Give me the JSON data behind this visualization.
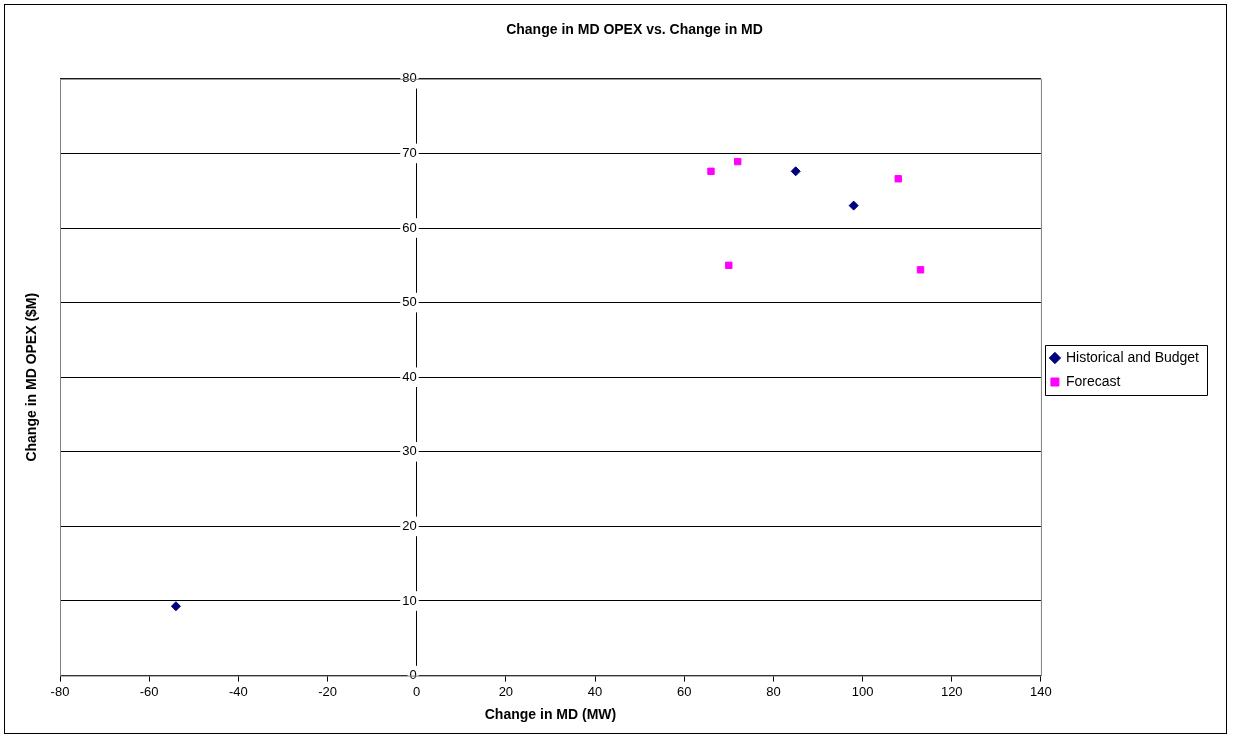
{
  "chart_data": {
    "type": "scatter",
    "title": "Change in MD OPEX vs. Change in MD",
    "xlabel": "Change in MD (MW)",
    "ylabel": "Change in MD OPEX ($M)",
    "series": [
      {
        "name": "Historical and Budget",
        "color": "#000080",
        "marker": "diamond",
        "x": [
          -54,
          85,
          98
        ],
        "values": [
          9.3,
          67.6,
          63
        ]
      },
      {
        "name": "Forecast",
        "color": "#ff00ff",
        "marker": "square",
        "x": [
          66,
          72,
          70,
          108,
          113
        ],
        "values": [
          67.6,
          68.9,
          55,
          66.6,
          54.4
        ]
      }
    ],
    "xlim": [
      -80,
      140
    ],
    "xticks": [
      -80,
      -60,
      -40,
      -20,
      0,
      20,
      40,
      60,
      80,
      100,
      120,
      140
    ],
    "ylim": [
      0,
      80
    ],
    "yticks": [
      0,
      10,
      20,
      30,
      40,
      50,
      60,
      70,
      80
    ],
    "grid": "y",
    "legend": "right"
  }
}
